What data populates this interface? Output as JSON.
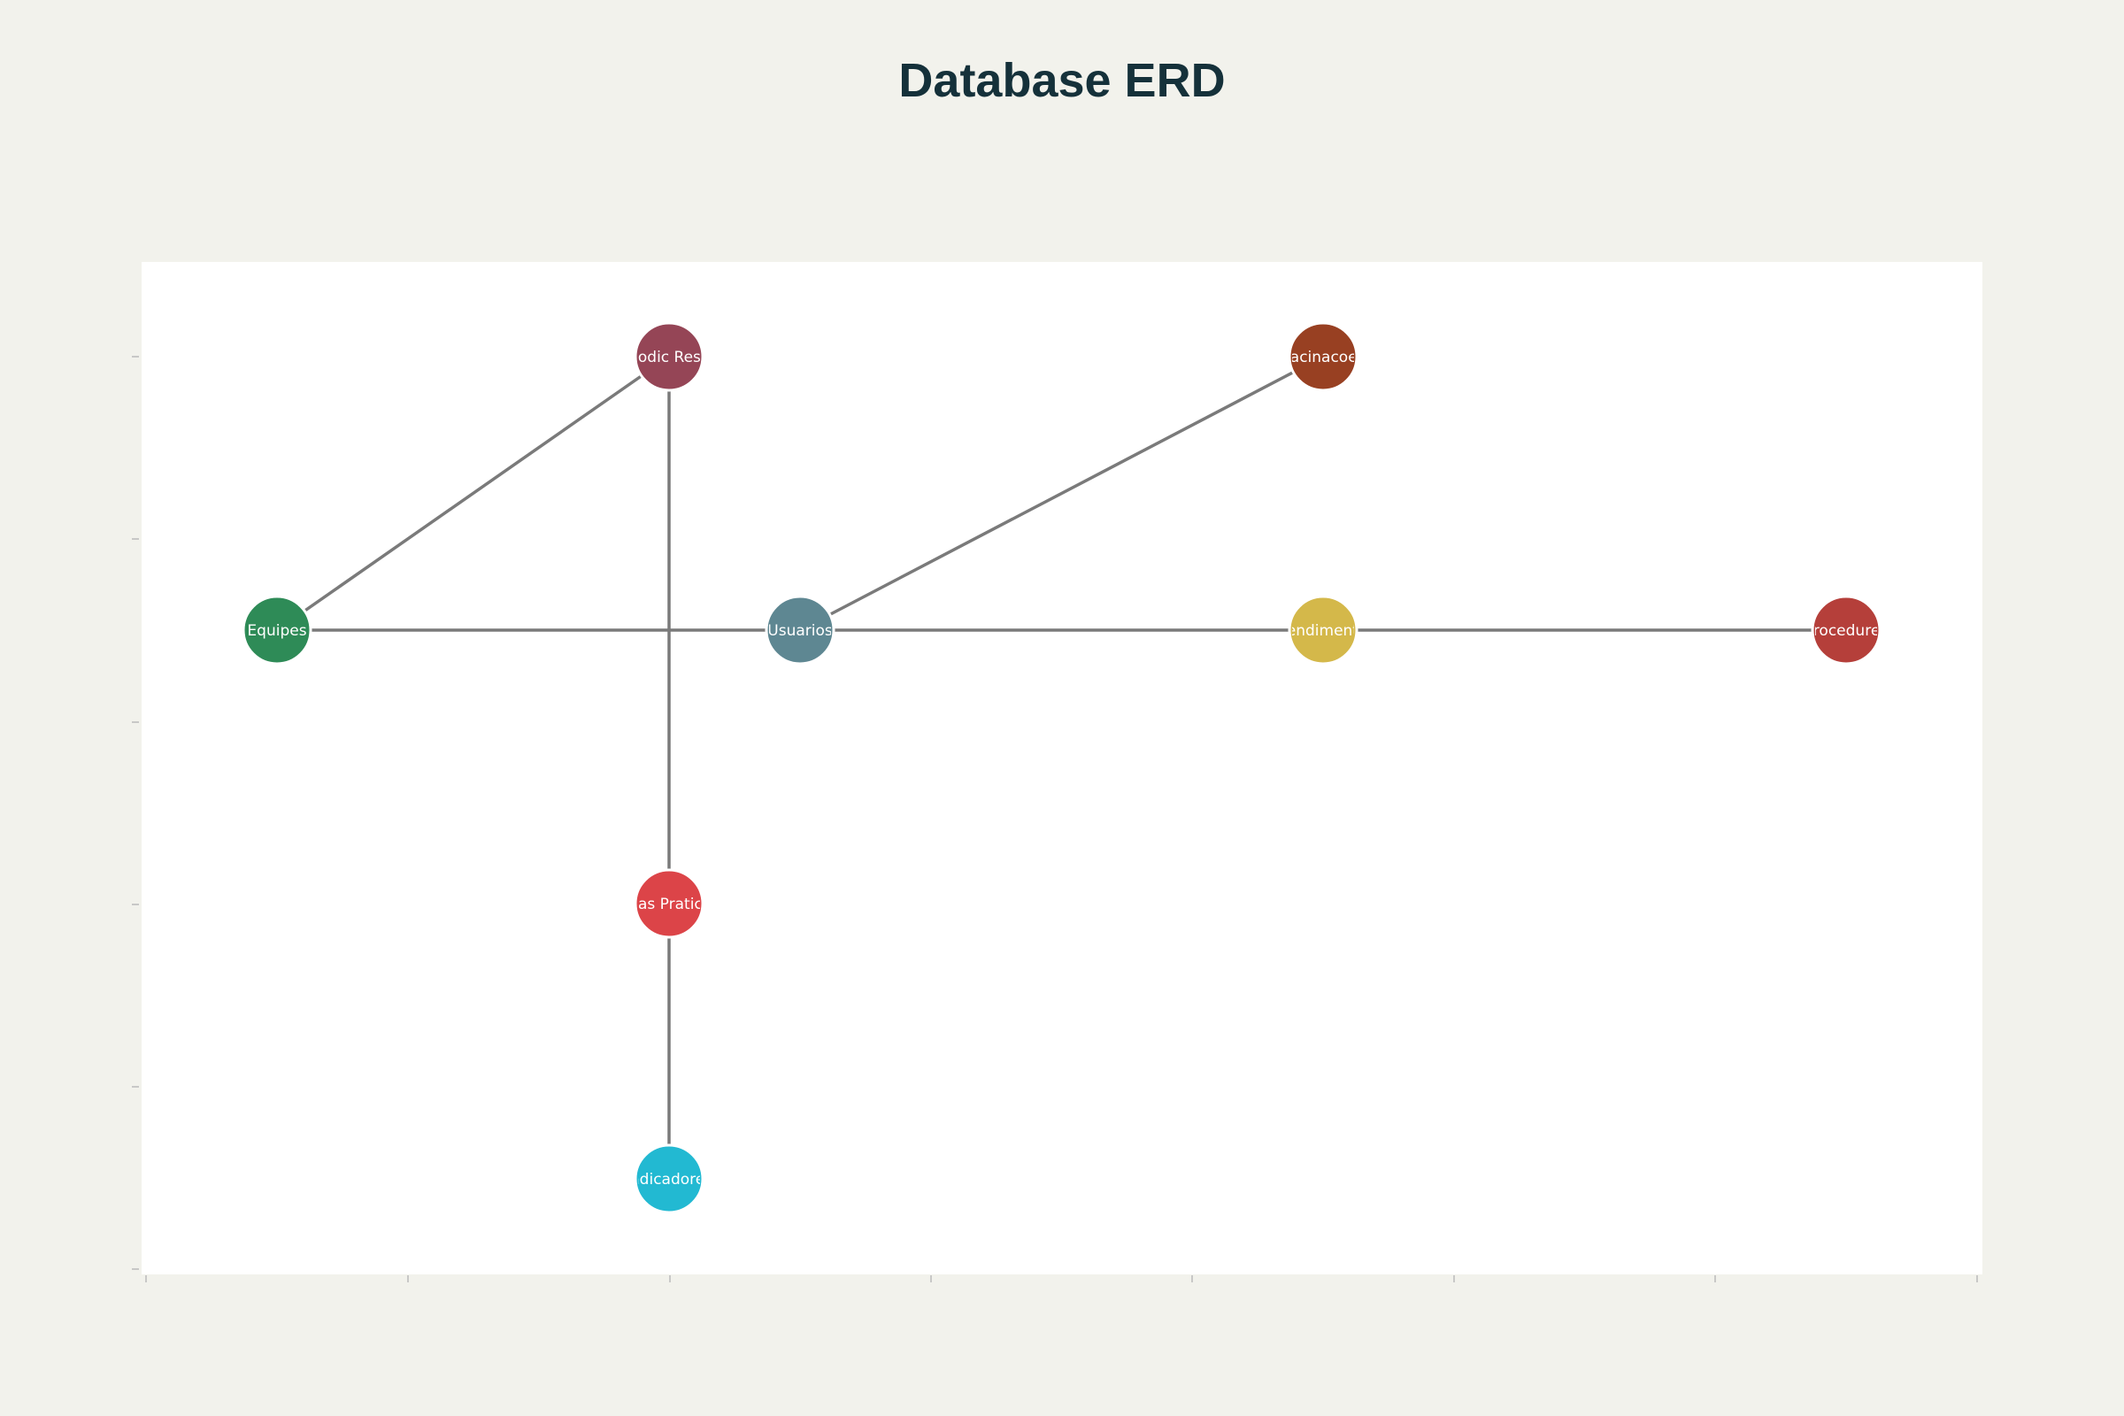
{
  "title": "Database ERD",
  "diagram": {
    "colors": {
      "background": "#f2f2ec",
      "plot_background": "#ffffff",
      "edge": "#7a7a7a",
      "axis_tick": "#bbbbbb",
      "node_text": "#ffffff",
      "title": "#15313a"
    },
    "nodes": [
      {
        "id": "Equipes",
        "label": "Equipes",
        "color": "#2e8b57"
      },
      {
        "id": "Usuarios",
        "label": "Usuarios",
        "color": "#5e8792"
      },
      {
        "id": "Atendimentos",
        "label": "Atendimentos",
        "color": "#d4b84a"
      },
      {
        "id": "Procedures",
        "label": "Procedures",
        "color": "#b53f3a"
      },
      {
        "id": "Periodic Results",
        "label": "Periodic Results",
        "color": "#954556"
      },
      {
        "id": "Vacinacoes",
        "label": "Vacinacoes",
        "color": "#984022"
      },
      {
        "id": "Boas Praticas",
        "label": "Boas Praticas",
        "color": "#dc4448"
      },
      {
        "id": "Indicadores",
        "label": "Indicadores",
        "color": "#22b9d2"
      }
    ],
    "edges": [
      {
        "from": "Equipes",
        "to": "Periodic Results"
      },
      {
        "from": "Equipes",
        "to": "Usuarios"
      },
      {
        "from": "Usuarios",
        "to": "Atendimentos"
      },
      {
        "from": "Atendimentos",
        "to": "Procedures"
      },
      {
        "from": "Usuarios",
        "to": "Vacinacoes"
      },
      {
        "from": "Periodic Results",
        "to": "Boas Praticas"
      },
      {
        "from": "Boas Praticas",
        "to": "Indicadores"
      }
    ]
  }
}
